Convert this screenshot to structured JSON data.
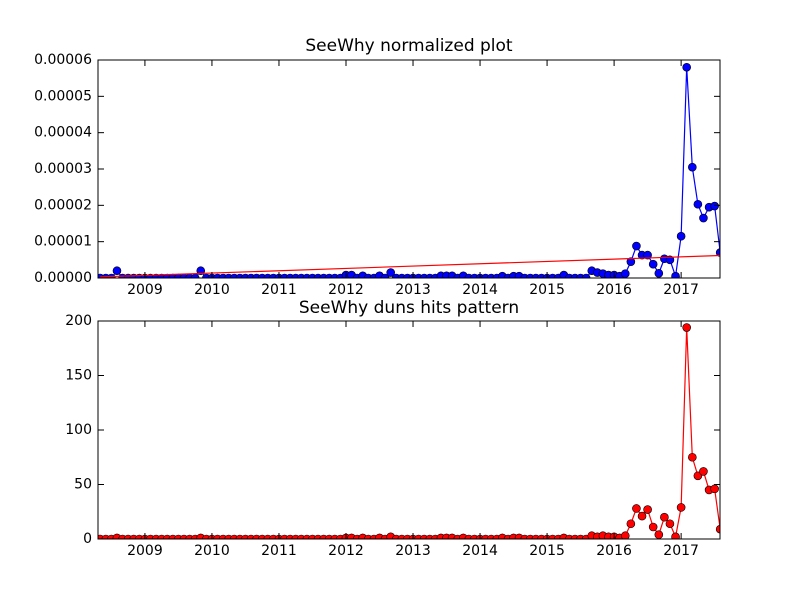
{
  "chart_data": [
    {
      "type": "line",
      "title": "SeeWhy normalized plot",
      "x": [
        2008.333,
        2008.417,
        2008.5,
        2008.583,
        2008.667,
        2008.75,
        2008.833,
        2008.917,
        2009.0,
        2009.083,
        2009.167,
        2009.25,
        2009.333,
        2009.417,
        2009.5,
        2009.583,
        2009.667,
        2009.75,
        2009.833,
        2009.917,
        2010.0,
        2010.083,
        2010.167,
        2010.25,
        2010.333,
        2010.417,
        2010.5,
        2010.583,
        2010.667,
        2010.75,
        2010.833,
        2010.917,
        2011.0,
        2011.083,
        2011.167,
        2011.25,
        2011.333,
        2011.417,
        2011.5,
        2011.583,
        2011.667,
        2011.75,
        2011.833,
        2011.917,
        2012.0,
        2012.083,
        2012.167,
        2012.25,
        2012.333,
        2012.417,
        2012.5,
        2012.583,
        2012.667,
        2012.75,
        2012.833,
        2012.917,
        2013.0,
        2013.083,
        2013.167,
        2013.25,
        2013.333,
        2013.417,
        2013.5,
        2013.583,
        2013.667,
        2013.75,
        2013.833,
        2013.917,
        2014.0,
        2014.083,
        2014.167,
        2014.25,
        2014.333,
        2014.417,
        2014.5,
        2014.583,
        2014.667,
        2014.75,
        2014.833,
        2014.917,
        2015.0,
        2015.083,
        2015.167,
        2015.25,
        2015.333,
        2015.417,
        2015.5,
        2015.583,
        2015.667,
        2015.75,
        2015.833,
        2015.917,
        2016.0,
        2016.083,
        2016.167,
        2016.25,
        2016.333,
        2016.417,
        2016.5,
        2016.583,
        2016.667,
        2016.75,
        2016.833,
        2016.917,
        2017.0,
        2017.083,
        2017.167,
        2017.25,
        2017.333,
        2017.417,
        2017.5,
        2017.583
      ],
      "series": [
        {
          "color": "#0000ff",
          "values": [
            0,
            0,
            0,
            2e-06,
            0,
            0,
            0,
            0,
            0,
            0,
            0,
            0,
            0,
            0,
            0,
            0,
            0,
            0,
            2e-06,
            0,
            0,
            0,
            0,
            0,
            0,
            0,
            0,
            0,
            0,
            0,
            0,
            0,
            0,
            0,
            0,
            0,
            0,
            0,
            0,
            0,
            0,
            0,
            0,
            0,
            8e-07,
            8e-07,
            0,
            6e-07,
            0,
            0,
            6e-07,
            0,
            1.5e-06,
            0,
            0,
            0,
            0,
            0,
            0,
            0,
            0,
            6e-07,
            6e-07,
            6e-07,
            0,
            6e-07,
            0,
            0,
            0,
            0,
            0,
            0,
            5e-07,
            0,
            5e-07,
            5e-07,
            0,
            0,
            0,
            0,
            0,
            0,
            0,
            8e-07,
            0,
            0,
            0,
            0,
            2e-06,
            1.5e-06,
            1.2e-06,
            8e-07,
            8e-07,
            5e-07,
            1.2e-06,
            4.5e-06,
            8.8e-06,
            6.3e-06,
            6.3e-06,
            3.8e-06,
            1.3e-06,
            5.3e-06,
            5e-06,
            5e-07,
            1.15e-05,
            5.8e-05,
            3.05e-05,
            2.03e-05,
            1.65e-05,
            1.95e-05,
            1.98e-05,
            7e-06
          ]
        }
      ],
      "trend": {
        "color": "#ff0000",
        "x": [
          2008.333,
          2017.583
        ],
        "values": [
          3e-07,
          6.2e-06
        ]
      },
      "xlim": [
        2008.3,
        2017.58
      ],
      "xticks": [
        2009,
        2010,
        2011,
        2012,
        2013,
        2014,
        2015,
        2016,
        2017
      ],
      "ylim": [
        0,
        6e-05
      ],
      "yticks": [
        {
          "value": 0,
          "label": "0.00000"
        },
        {
          "value": 1e-05,
          "label": "0.00001"
        },
        {
          "value": 2e-05,
          "label": "0.00002"
        },
        {
          "value": 3e-05,
          "label": "0.00003"
        },
        {
          "value": 4e-05,
          "label": "0.00004"
        },
        {
          "value": 5e-05,
          "label": "0.00005"
        },
        {
          "value": 6e-05,
          "label": "0.00006"
        }
      ]
    },
    {
      "type": "line",
      "title": "SeeWhy duns hits pattern",
      "x": [
        2008.333,
        2008.417,
        2008.5,
        2008.583,
        2008.667,
        2008.75,
        2008.833,
        2008.917,
        2009.0,
        2009.083,
        2009.167,
        2009.25,
        2009.333,
        2009.417,
        2009.5,
        2009.583,
        2009.667,
        2009.75,
        2009.833,
        2009.917,
        2010.0,
        2010.083,
        2010.167,
        2010.25,
        2010.333,
        2010.417,
        2010.5,
        2010.583,
        2010.667,
        2010.75,
        2010.833,
        2010.917,
        2011.0,
        2011.083,
        2011.167,
        2011.25,
        2011.333,
        2011.417,
        2011.5,
        2011.583,
        2011.667,
        2011.75,
        2011.833,
        2011.917,
        2012.0,
        2012.083,
        2012.167,
        2012.25,
        2012.333,
        2012.417,
        2012.5,
        2012.583,
        2012.667,
        2012.75,
        2012.833,
        2012.917,
        2013.0,
        2013.083,
        2013.167,
        2013.25,
        2013.333,
        2013.417,
        2013.5,
        2013.583,
        2013.667,
        2013.75,
        2013.833,
        2013.917,
        2014.0,
        2014.083,
        2014.167,
        2014.25,
        2014.333,
        2014.417,
        2014.5,
        2014.583,
        2014.667,
        2014.75,
        2014.833,
        2014.917,
        2015.0,
        2015.083,
        2015.167,
        2015.25,
        2015.333,
        2015.417,
        2015.5,
        2015.583,
        2015.667,
        2015.75,
        2015.833,
        2015.917,
        2016.0,
        2016.083,
        2016.167,
        2016.25,
        2016.333,
        2016.417,
        2016.5,
        2016.583,
        2016.667,
        2016.75,
        2016.833,
        2016.917,
        2017.0,
        2017.083,
        2017.167,
        2017.25,
        2017.333,
        2017.417,
        2017.5,
        2017.583
      ],
      "series": [
        {
          "color": "#ff0000",
          "values": [
            0,
            0,
            0,
            1,
            0,
            0,
            0,
            0,
            0,
            0,
            0,
            0,
            0,
            0,
            0,
            0,
            0,
            0,
            1,
            0,
            0,
            0,
            0,
            0,
            0,
            0,
            0,
            0,
            0,
            0,
            0,
            0,
            0,
            0,
            0,
            0,
            0,
            0,
            0,
            0,
            0,
            0,
            0,
            0,
            1,
            1,
            0,
            1,
            0,
            0,
            1,
            0,
            2,
            0,
            0,
            0,
            0,
            0,
            0,
            0,
            0,
            1,
            1,
            1,
            0,
            1,
            0,
            0,
            0,
            0,
            0,
            0,
            1,
            0,
            1,
            1,
            0,
            0,
            0,
            0,
            0,
            0,
            0,
            1,
            0,
            0,
            0,
            0,
            3,
            2,
            3,
            2,
            2,
            1,
            3,
            14,
            28,
            21,
            27,
            11,
            4,
            20,
            14,
            2,
            29,
            194,
            75,
            58,
            62,
            45,
            46,
            9
          ]
        }
      ],
      "xlim": [
        2008.3,
        2017.58
      ],
      "xticks": [
        2009,
        2010,
        2011,
        2012,
        2013,
        2014,
        2015,
        2016,
        2017
      ],
      "ylim": [
        0,
        200
      ],
      "yticks": [
        0,
        50,
        100,
        150,
        200
      ]
    }
  ]
}
